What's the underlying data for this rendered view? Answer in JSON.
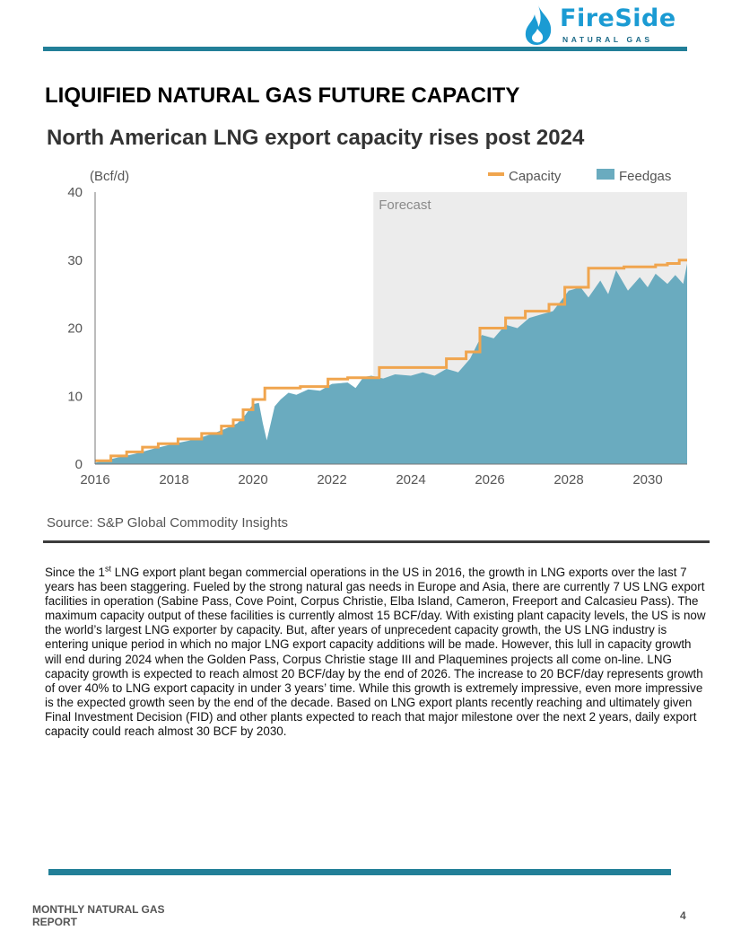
{
  "header": {
    "logo_name": "FireSide",
    "logo_sub": "NATURAL GAS",
    "colors": {
      "brand": "#1b9bd3",
      "rule": "#227f98"
    },
    "logo_icon": "flame-drop-icon"
  },
  "title": "LIQUIFIED NATURAL GAS FUTURE CAPACITY",
  "chart_data": {
    "type": "area",
    "title": "North American LNG export capacity rises post 2024",
    "ylabel": "(Bcf/d)",
    "ylim": [
      0,
      40
    ],
    "yticks": [
      "0",
      "10",
      "20",
      "30",
      "40"
    ],
    "xlim": [
      2016,
      2031
    ],
    "xticks": [
      "2016",
      "2018",
      "2020",
      "2022",
      "2024",
      "2026",
      "2028",
      "2030"
    ],
    "forecast_label": "Forecast",
    "forecast_start": 2023.05,
    "grid": false,
    "legend_position": "top-right",
    "source": "Source: S&P Global Commodity Insights",
    "colors": {
      "capacity": "#f0a54e",
      "feedgas": "#6aabbf",
      "forecast_shade": "#ececec"
    },
    "series": [
      {
        "name": "Capacity",
        "type": "step-line",
        "x": [
          2016.0,
          2016.4,
          2016.8,
          2017.2,
          2017.6,
          2018.1,
          2018.7,
          2019.2,
          2019.5,
          2019.75,
          2020.0,
          2020.3,
          2021.2,
          2021.9,
          2022.4,
          2023.2,
          2024.5,
          2024.9,
          2025.4,
          2025.75,
          2026.4,
          2026.9,
          2027.5,
          2027.9,
          2028.5,
          2029.4,
          2030.2,
          2030.5,
          2030.8,
          2031.0
        ],
        "values": [
          0.5,
          1.2,
          1.8,
          2.5,
          3.0,
          3.7,
          4.5,
          5.6,
          6.5,
          8.0,
          9.5,
          11.2,
          11.4,
          12.5,
          12.7,
          14.2,
          14.2,
          15.5,
          16.5,
          20.0,
          21.5,
          22.5,
          23.5,
          26.0,
          28.8,
          29.0,
          29.3,
          29.5,
          30.0,
          30.0
        ]
      },
      {
        "name": "Feedgas",
        "type": "area",
        "x": [
          2016.0,
          2016.3,
          2016.6,
          2017.0,
          2017.5,
          2018.0,
          2018.5,
          2019.0,
          2019.3,
          2019.6,
          2019.8,
          2020.0,
          2020.15,
          2020.25,
          2020.35,
          2020.45,
          2020.55,
          2020.7,
          2020.9,
          2021.1,
          2021.4,
          2021.7,
          2022.0,
          2022.4,
          2022.6,
          2022.8,
          2023.0,
          2023.3,
          2023.6,
          2024.0,
          2024.3,
          2024.6,
          2024.9,
          2025.2,
          2025.5,
          2025.8,
          2026.1,
          2026.4,
          2026.7,
          2027.0,
          2027.3,
          2027.6,
          2027.8,
          2028.0,
          2028.3,
          2028.5,
          2028.8,
          2029.0,
          2029.2,
          2029.5,
          2029.8,
          2030.0,
          2030.2,
          2030.5,
          2030.7,
          2030.9,
          2031.0
        ],
        "values": [
          0.2,
          0.6,
          1.0,
          1.5,
          2.3,
          3.0,
          3.6,
          4.5,
          5.2,
          6.0,
          7.2,
          8.8,
          9.0,
          6.0,
          3.5,
          6.0,
          8.5,
          9.5,
          10.5,
          10.2,
          11.0,
          10.8,
          11.8,
          12.0,
          11.2,
          12.8,
          13.0,
          12.6,
          13.2,
          13.0,
          13.5,
          13.0,
          14.0,
          13.5,
          15.5,
          19.0,
          18.5,
          20.5,
          20.0,
          21.5,
          22.0,
          22.5,
          24.0,
          25.5,
          26.0,
          24.5,
          27.0,
          25.0,
          28.5,
          25.5,
          27.5,
          26.0,
          28.0,
          26.5,
          27.8,
          26.5,
          29.5
        ]
      }
    ]
  },
  "body": {
    "p1_a": "Since the 1",
    "p1_sup": "st",
    "p1_b": " LNG export plant began commercial operations in the US in 2016, the growth in LNG exports over the last 7 years has been staggering.  Fueled by the strong natural gas needs in Europe and Asia, there are currently 7 US LNG export facilities in operation (Sabine Pass, Cove Point, Corpus Christie, Elba Island, Cameron, Freeport and Calcasieu Pass).  The maximum capacity output of these facilities is currently almost 15 BCF/day.  With existing plant capacity levels, the US is now the world’s largest LNG exporter by capacity.  But, after years of unprecedent capacity growth, the US LNG industry is entering unique period in which no major LNG export capacity additions will be made.  However, this lull in capacity growth will end during 2024 when the Golden Pass, Corpus Christie stage III and Plaquemines projects all come on-line.  LNG capacity growth is expected to reach almost 20 BCF/day by the end of 2026.  The increase to 20 BCF/day represents growth of over 40% to LNG export capacity in under 3 years’ time.  While this growth is extremely impressive, even more impressive is the expected growth seen by the end of the decade.  Based on LNG export plants recently reaching and ultimately given Final Investment Decision (FID) and other plants expected to reach that major milestone over the next 2 years, daily export capacity could reach almost 30 BCF by 2030."
  },
  "footer": {
    "label": "MONTHLY NATURAL GAS REPORT",
    "page": "4"
  }
}
